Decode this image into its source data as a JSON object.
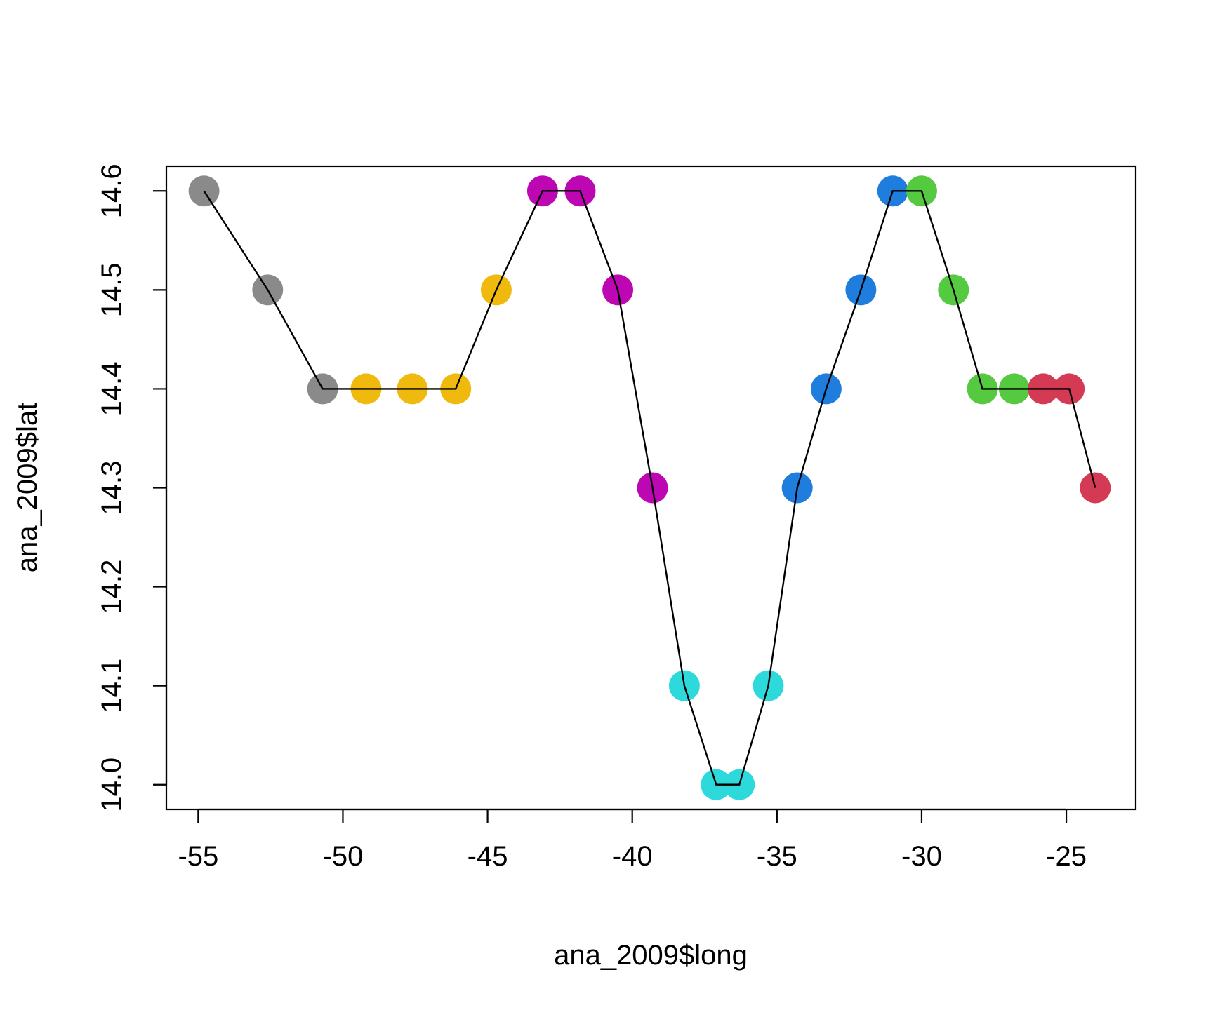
{
  "chart_data": {
    "type": "scatter",
    "title": "",
    "xlabel": "ana_2009$long",
    "ylabel": "ana_2009$lat",
    "xlim": [
      -56.1,
      -22.6
    ],
    "ylim": [
      13.975,
      14.625
    ],
    "x_ticks": [
      -55,
      -50,
      -45,
      -40,
      -35,
      -30,
      -25
    ],
    "x_tick_labels": [
      "-55",
      "-50",
      "-45",
      "-40",
      "-35",
      "-30",
      "-25"
    ],
    "y_ticks": [
      14.0,
      14.1,
      14.2,
      14.3,
      14.4,
      14.5,
      14.6
    ],
    "y_tick_labels": [
      "14.0",
      "14.1",
      "14.2",
      "14.3",
      "14.4",
      "14.5",
      "14.6"
    ],
    "grid": false,
    "legend": "none",
    "line": {
      "connects_points": true,
      "color": "#000000"
    },
    "point_colors": {
      "gray": "#8a8a8a",
      "gold": "#f0b90e",
      "magenta": "#bc07b2",
      "cyan": "#2ed9dc",
      "blue": "#1f7ddd",
      "green": "#55c940",
      "red": "#d53a55"
    },
    "points": [
      {
        "x": -54.8,
        "y": 14.6,
        "color": "gray"
      },
      {
        "x": -52.6,
        "y": 14.5,
        "color": "gray"
      },
      {
        "x": -50.7,
        "y": 14.4,
        "color": "gray"
      },
      {
        "x": -49.2,
        "y": 14.4,
        "color": "gold"
      },
      {
        "x": -47.6,
        "y": 14.4,
        "color": "gold"
      },
      {
        "x": -46.1,
        "y": 14.4,
        "color": "gold"
      },
      {
        "x": -44.7,
        "y": 14.5,
        "color": "gold"
      },
      {
        "x": -43.1,
        "y": 14.6,
        "color": "magenta"
      },
      {
        "x": -41.8,
        "y": 14.6,
        "color": "magenta"
      },
      {
        "x": -40.5,
        "y": 14.5,
        "color": "magenta"
      },
      {
        "x": -39.3,
        "y": 14.3,
        "color": "magenta"
      },
      {
        "x": -38.2,
        "y": 14.1,
        "color": "cyan"
      },
      {
        "x": -37.1,
        "y": 14.0,
        "color": "cyan"
      },
      {
        "x": -36.3,
        "y": 14.0,
        "color": "cyan"
      },
      {
        "x": -35.3,
        "y": 14.1,
        "color": "cyan"
      },
      {
        "x": -34.3,
        "y": 14.3,
        "color": "blue"
      },
      {
        "x": -33.3,
        "y": 14.4,
        "color": "blue"
      },
      {
        "x": -32.1,
        "y": 14.5,
        "color": "blue"
      },
      {
        "x": -31.0,
        "y": 14.6,
        "color": "blue"
      },
      {
        "x": -30.0,
        "y": 14.6,
        "color": "green"
      },
      {
        "x": -28.9,
        "y": 14.5,
        "color": "green"
      },
      {
        "x": -27.9,
        "y": 14.4,
        "color": "green"
      },
      {
        "x": -26.8,
        "y": 14.4,
        "color": "green"
      },
      {
        "x": -25.8,
        "y": 14.4,
        "color": "red"
      },
      {
        "x": -24.9,
        "y": 14.4,
        "color": "red"
      },
      {
        "x": -24.0,
        "y": 14.3,
        "color": "red"
      }
    ]
  }
}
